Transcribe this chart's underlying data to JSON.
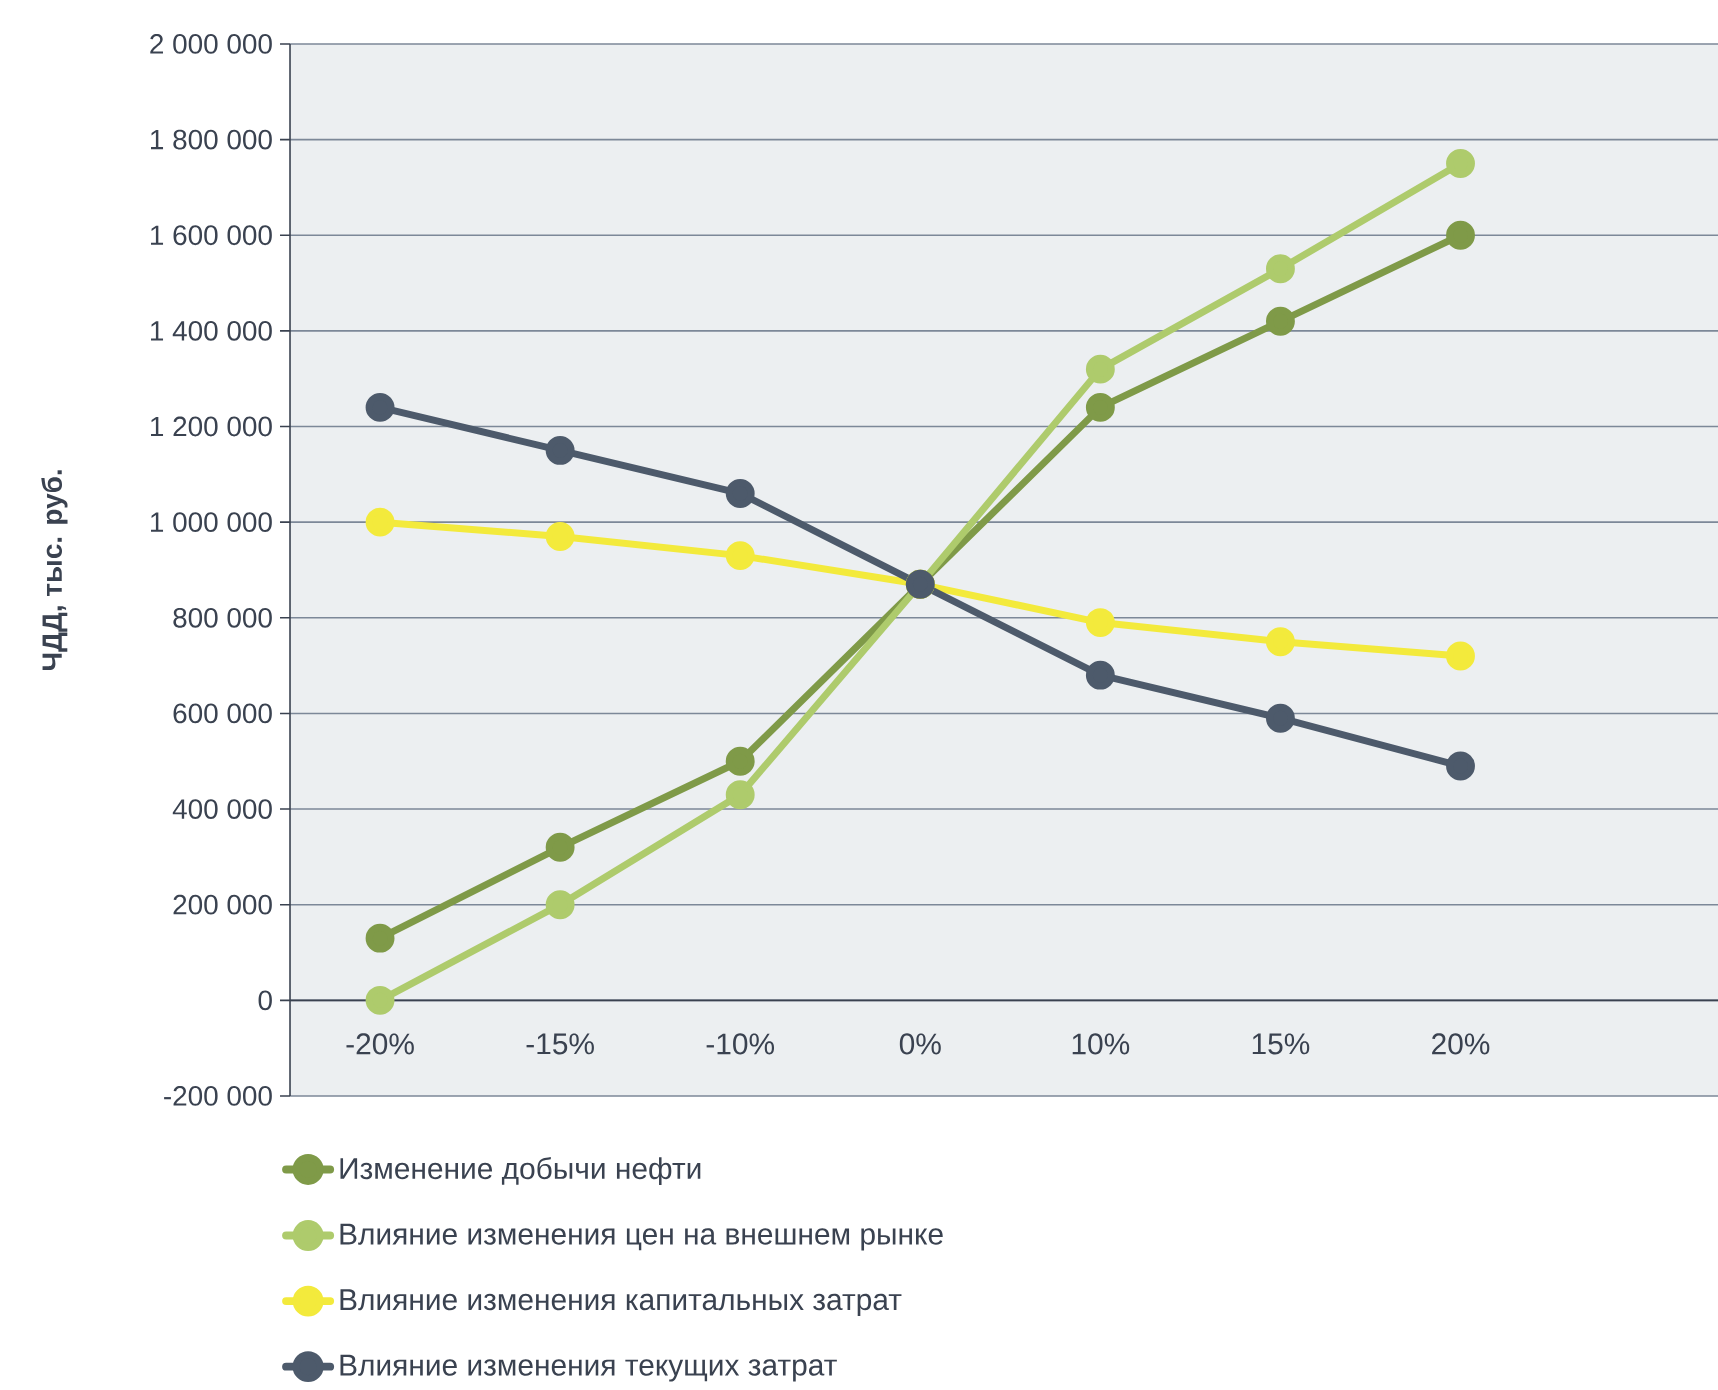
{
  "chart_data": {
    "type": "line",
    "ylabel": "ЧДД, тыс. руб.",
    "categories": [
      "-20%",
      "-15%",
      "-10%",
      "0%",
      "10%",
      "15%",
      "20%"
    ],
    "series": [
      {
        "name": "Изменение добычи нефти",
        "color": "#7f9a48",
        "values": [
          130000,
          320000,
          500000,
          870000,
          1240000,
          1420000,
          1600000
        ]
      },
      {
        "name": "Влияние изменения цен на внешнем рынке",
        "color": "#aecb6c",
        "values": [
          0,
          200000,
          430000,
          870000,
          1320000,
          1530000,
          1750000
        ]
      },
      {
        "name": "Влияние изменения капитальных затрат",
        "color": "#f3ea3c",
        "values": [
          1000000,
          970000,
          930000,
          870000,
          790000,
          750000,
          720000
        ]
      },
      {
        "name": "Влияние изменения текущих затрат",
        "color": "#4d5a6b",
        "values": [
          1240000,
          1150000,
          1060000,
          870000,
          680000,
          590000,
          490000
        ]
      }
    ],
    "ylim": [
      -200000,
      2000000
    ],
    "yticks": [
      {
        "value": -200000,
        "label": "-200 000"
      },
      {
        "value": 0,
        "label": "0"
      },
      {
        "value": 200000,
        "label": "200 000"
      },
      {
        "value": 400000,
        "label": "400 000"
      },
      {
        "value": 600000,
        "label": "600 000"
      },
      {
        "value": 800000,
        "label": "800 000"
      },
      {
        "value": 1000000,
        "label": "1 000 000"
      },
      {
        "value": 1200000,
        "label": "1 200 000"
      },
      {
        "value": 1400000,
        "label": "1 400 000"
      },
      {
        "value": 1600000,
        "label": "1 600 000"
      },
      {
        "value": 1800000,
        "label": "1 800 000"
      },
      {
        "value": 2000000,
        "label": "2 000 000"
      }
    ],
    "grid": "y",
    "legend": "bottom",
    "marker": "circle",
    "line_style": "solid"
  }
}
